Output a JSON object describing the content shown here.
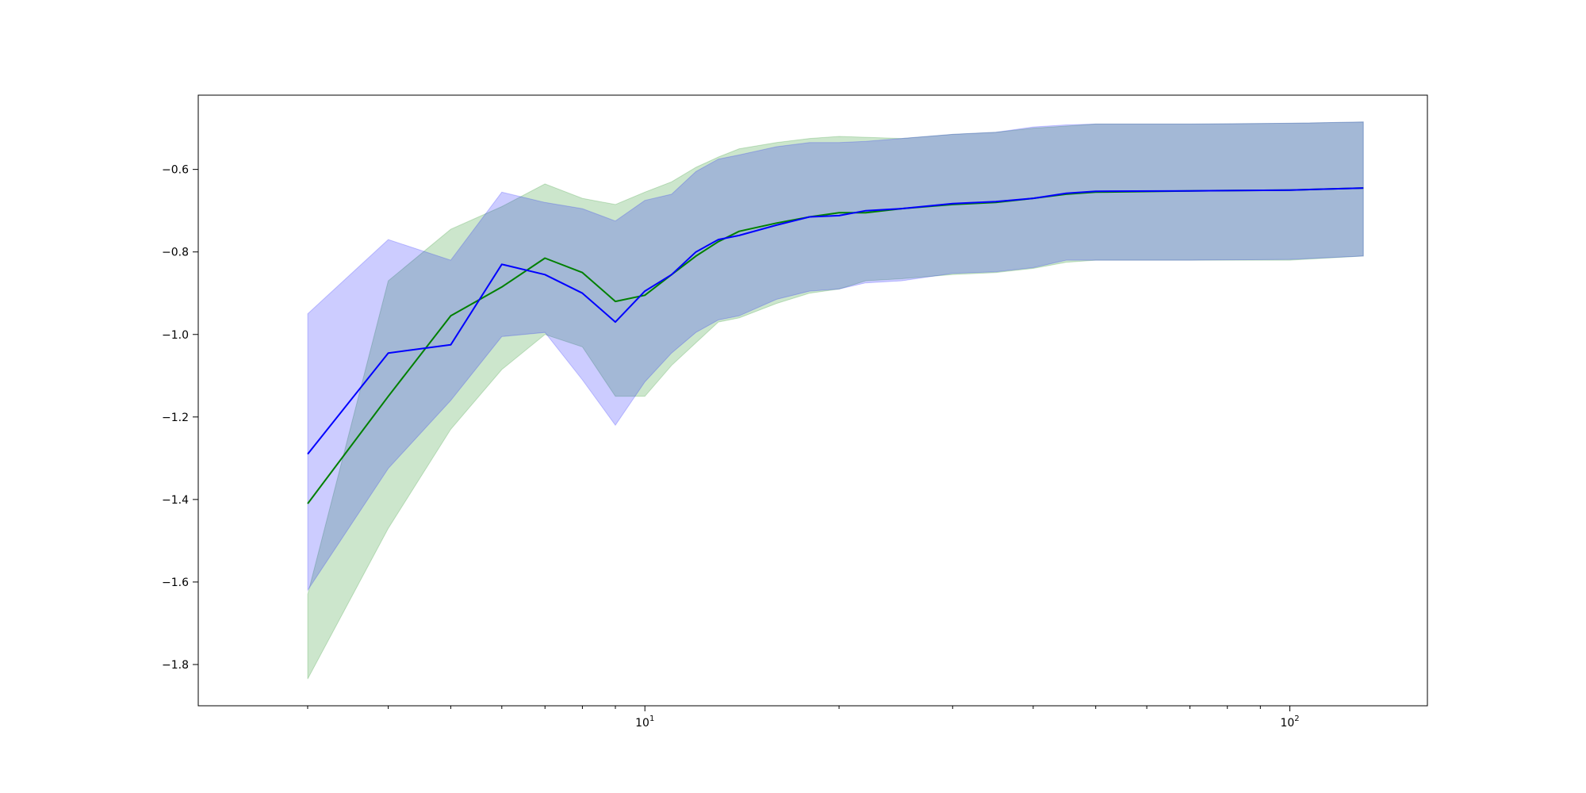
{
  "chart_data": {
    "type": "line",
    "xscale": "log",
    "xlim": [
      2.03,
      163.4
    ],
    "ylim": [
      -1.9,
      -0.42
    ],
    "grid": false,
    "x_ticks": [
      {
        "value": 10,
        "base": "10",
        "exp": "1"
      },
      {
        "value": 100,
        "base": "10",
        "exp": "2"
      }
    ],
    "x_minor_ticks": [
      3,
      4,
      5,
      6,
      7,
      8,
      9,
      20,
      30,
      40,
      50,
      60,
      70,
      80,
      90
    ],
    "y_ticks": [
      {
        "value": -1.8,
        "label": "−1.8"
      },
      {
        "value": -1.6,
        "label": "−1.6"
      },
      {
        "value": -1.4,
        "label": "−1.4"
      },
      {
        "value": -1.2,
        "label": "−1.2"
      },
      {
        "value": -1.0,
        "label": "−1.0"
      },
      {
        "value": -0.8,
        "label": "−0.8"
      },
      {
        "value": -0.6,
        "label": "−0.6"
      }
    ],
    "series": [
      {
        "color": "#008000",
        "band_color": "#008000",
        "band_opacity": 0.2,
        "x": [
          3,
          4,
          5,
          6,
          7,
          8,
          9,
          10,
          11,
          12,
          13,
          14,
          16,
          18,
          20,
          22,
          25,
          30,
          35,
          40,
          45,
          50,
          70,
          100,
          130
        ],
        "mean": [
          -1.41,
          -1.15,
          -0.955,
          -0.885,
          -0.815,
          -0.85,
          -0.92,
          -0.905,
          -0.855,
          -0.81,
          -0.775,
          -0.75,
          -0.73,
          -0.715,
          -0.705,
          -0.705,
          -0.695,
          -0.685,
          -0.68,
          -0.67,
          -0.66,
          -0.655,
          -0.652,
          -0.65,
          -0.645
        ],
        "upper": [
          -1.63,
          -0.87,
          -0.745,
          -0.69,
          -0.635,
          -0.67,
          -0.685,
          -0.655,
          -0.63,
          -0.595,
          -0.57,
          -0.55,
          -0.535,
          -0.525,
          -0.52,
          -0.522,
          -0.525,
          -0.515,
          -0.51,
          -0.5,
          -0.495,
          -0.49,
          -0.49,
          -0.488,
          -0.485
        ],
        "lower": [
          -1.835,
          -1.47,
          -1.23,
          -1.085,
          -1.0,
          -1.03,
          -1.15,
          -1.15,
          -1.075,
          -1.02,
          -0.97,
          -0.96,
          -0.925,
          -0.9,
          -0.89,
          -0.87,
          -0.865,
          -0.855,
          -0.85,
          -0.84,
          -0.825,
          -0.82,
          -0.82,
          -0.82,
          -0.81
        ]
      },
      {
        "color": "#0000ff",
        "band_color": "#0000ff",
        "band_opacity": 0.2,
        "x": [
          3,
          4,
          5,
          6,
          7,
          8,
          9,
          10,
          11,
          12,
          13,
          14,
          16,
          18,
          20,
          22,
          25,
          30,
          35,
          40,
          45,
          50,
          70,
          100,
          130
        ],
        "mean": [
          -1.29,
          -1.045,
          -1.025,
          -0.83,
          -0.855,
          -0.9,
          -0.97,
          -0.895,
          -0.855,
          -0.8,
          -0.77,
          -0.76,
          -0.735,
          -0.715,
          -0.712,
          -0.7,
          -0.695,
          -0.683,
          -0.678,
          -0.67,
          -0.658,
          -0.653,
          -0.652,
          -0.65,
          -0.645
        ],
        "upper": [
          -0.95,
          -0.77,
          -0.82,
          -0.655,
          -0.68,
          -0.695,
          -0.725,
          -0.675,
          -0.66,
          -0.605,
          -0.575,
          -0.565,
          -0.545,
          -0.535,
          -0.535,
          -0.532,
          -0.525,
          -0.515,
          -0.51,
          -0.497,
          -0.492,
          -0.49,
          -0.49,
          -0.488,
          -0.485
        ],
        "lower": [
          -1.62,
          -1.325,
          -1.16,
          -1.005,
          -0.995,
          -1.11,
          -1.22,
          -1.115,
          -1.045,
          -0.995,
          -0.965,
          -0.955,
          -0.915,
          -0.895,
          -0.89,
          -0.875,
          -0.87,
          -0.852,
          -0.848,
          -0.838,
          -0.82,
          -0.82,
          -0.82,
          -0.818,
          -0.81
        ]
      }
    ]
  }
}
